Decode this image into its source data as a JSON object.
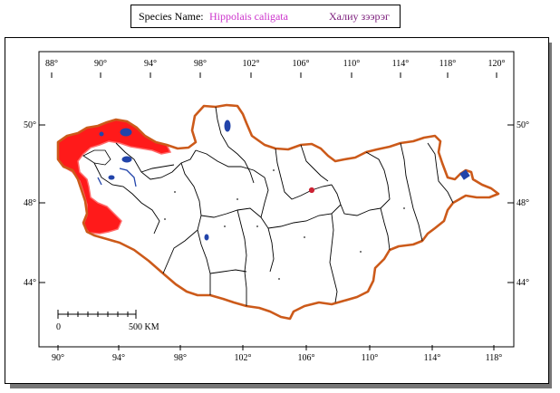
{
  "header": {
    "species_label": "Species Name:",
    "scientific_name": "Hippolais caligata",
    "local_name": "Халиу зээрэг"
  },
  "map": {
    "top_longitudes": [
      "88°",
      "90°",
      "94°",
      "98°",
      "102°",
      "106°",
      "110°",
      "114°",
      "118°",
      "120°"
    ],
    "bottom_longitudes": [
      "90°",
      "94°",
      "98°",
      "102°",
      "106°",
      "110°",
      "114°",
      "118°"
    ],
    "left_latitudes": [
      "50°",
      "48°",
      "44°"
    ],
    "right_latitudes": [
      "50°",
      "48°",
      "44°"
    ],
    "scale_bar": {
      "start_label": "0",
      "end_label": "500 KM"
    },
    "colors": {
      "border": "#cc5a1a",
      "range": "#ff1a1a",
      "lakes": "#2244aa",
      "admin_lines": "#000000",
      "header_scientific": "#cc33cc",
      "header_local": "#7a1a7a"
    }
  }
}
